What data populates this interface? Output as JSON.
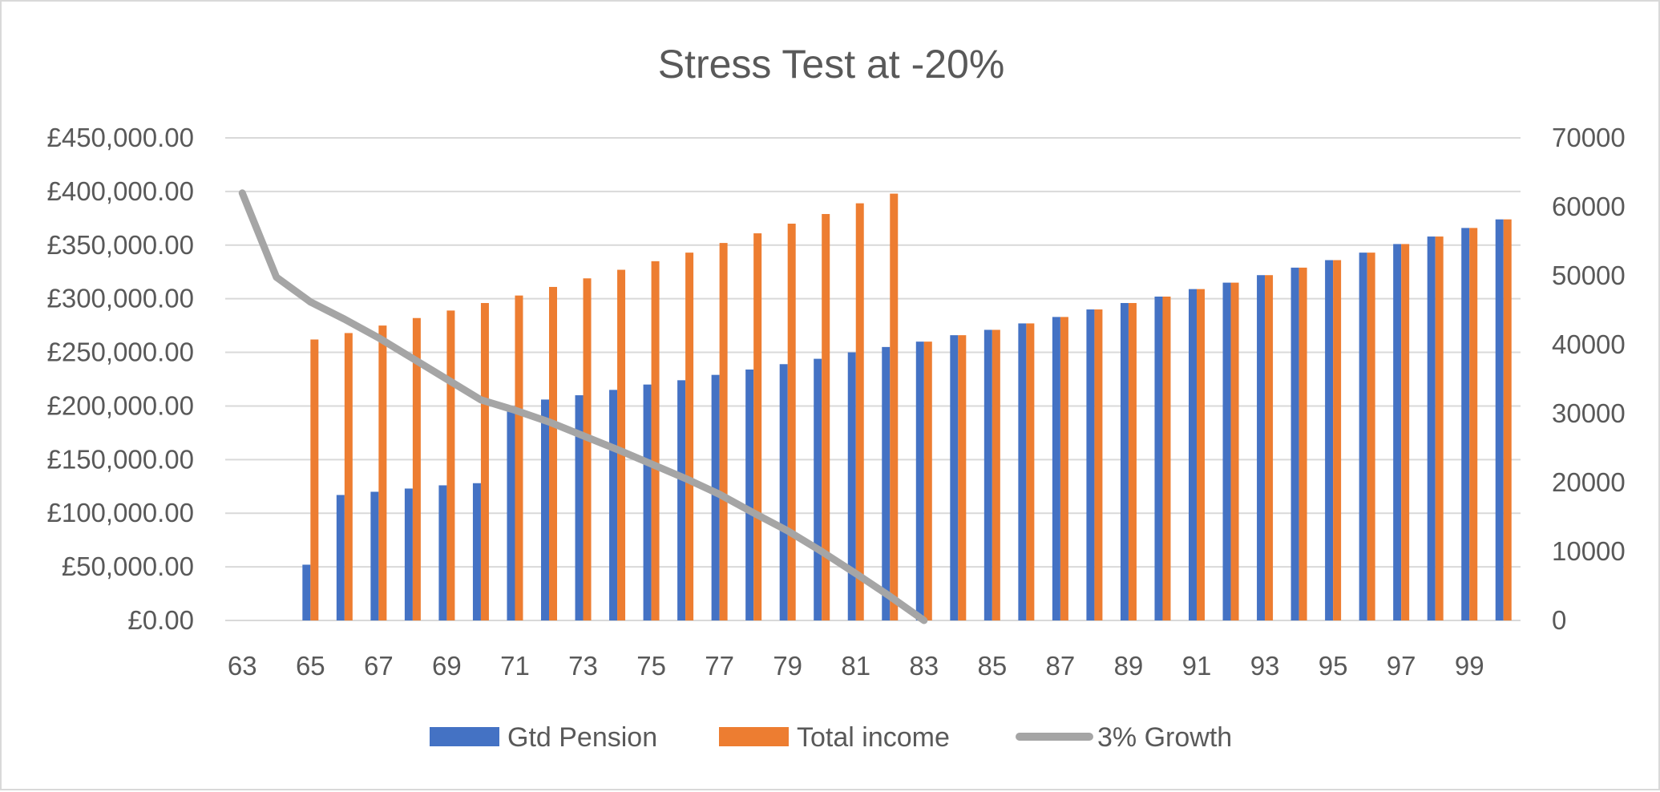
{
  "chart_data": {
    "type": "bar",
    "title": "Stress Test at -20%",
    "x": [
      63,
      64,
      65,
      66,
      67,
      68,
      69,
      70,
      71,
      72,
      73,
      74,
      75,
      76,
      77,
      78,
      79,
      80,
      81,
      82,
      83,
      84,
      85,
      86,
      87,
      88,
      89,
      90,
      91,
      92,
      93,
      94,
      95,
      96,
      97,
      98,
      99,
      100
    ],
    "x_tick_labels": [
      "63",
      "65",
      "67",
      "69",
      "71",
      "73",
      "75",
      "77",
      "79",
      "81",
      "83",
      "85",
      "87",
      "89",
      "91",
      "93",
      "95",
      "97",
      "99"
    ],
    "y_left": {
      "min": 0,
      "max": 450000,
      "step": 50000,
      "tick_labels": [
        "£0.00",
        "£50,000.00",
        "£100,000.00",
        "£150,000.00",
        "£200,000.00",
        "£250,000.00",
        "£300,000.00",
        "£350,000.00",
        "£400,000.00",
        "£450,000.00"
      ]
    },
    "y_right": {
      "min": 0,
      "max": 70000,
      "step": 10000,
      "tick_labels": [
        "0",
        "10000",
        "20000",
        "30000",
        "40000",
        "50000",
        "60000",
        "70000"
      ]
    },
    "grid": true,
    "legend_position": "bottom",
    "series": [
      {
        "name": "Gtd Pension",
        "type": "bar",
        "axis": "left",
        "color": "#4472c4",
        "values": [
          0,
          0,
          52000,
          117000,
          120000,
          123000,
          126000,
          128000,
          200000,
          206000,
          210000,
          215000,
          220000,
          224000,
          229000,
          234000,
          239000,
          244000,
          250000,
          255000,
          260000,
          266000,
          271000,
          277000,
          283000,
          290000,
          296000,
          302000,
          309000,
          315000,
          322000,
          329000,
          336000,
          343000,
          351000,
          358000,
          366000,
          374000
        ]
      },
      {
        "name": "Total income",
        "type": "bar",
        "axis": "left",
        "color": "#ed7d31",
        "values": [
          0,
          0,
          262000,
          268000,
          275000,
          282000,
          289000,
          296000,
          303000,
          311000,
          319000,
          327000,
          335000,
          343000,
          352000,
          361000,
          370000,
          379000,
          389000,
          398000,
          260000,
          266000,
          271000,
          277000,
          283000,
          290000,
          296000,
          302000,
          309000,
          315000,
          322000,
          329000,
          336000,
          343000,
          351000,
          358000,
          366000,
          374000
        ]
      },
      {
        "name": "3% Growth",
        "type": "line",
        "axis": "right",
        "color": "#a5a5a5",
        "x": [
          63,
          64,
          65,
          66,
          67,
          68,
          69,
          70,
          71,
          72,
          73,
          74,
          75,
          76,
          77,
          78,
          79,
          80,
          81,
          82,
          83
        ],
        "values": [
          62000,
          49800,
          46200,
          43700,
          41000,
          38000,
          35000,
          32000,
          30500,
          28800,
          26800,
          24800,
          22700,
          20600,
          18300,
          15600,
          13000,
          10000,
          6800,
          3500,
          0
        ]
      }
    ]
  }
}
